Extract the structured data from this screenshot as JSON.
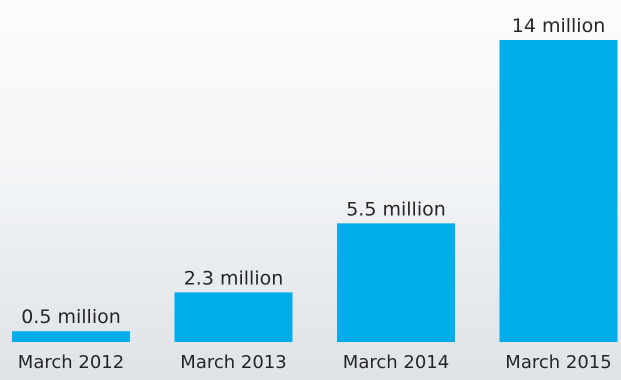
{
  "chart_data": {
    "type": "bar",
    "categories": [
      "March 2012",
      "March 2013",
      "March 2014",
      "March 2015"
    ],
    "values": [
      0.5,
      2.3,
      5.5,
      14
    ],
    "data_labels": [
      "0.5 million",
      "2.3 million",
      "5.5 million",
      "14 million"
    ],
    "title": "",
    "xlabel": "",
    "ylabel": "",
    "ylim": [
      0,
      14
    ],
    "grid": false,
    "legend": "none",
    "bar_color": "#00adeb",
    "text_color": "#262626"
  }
}
